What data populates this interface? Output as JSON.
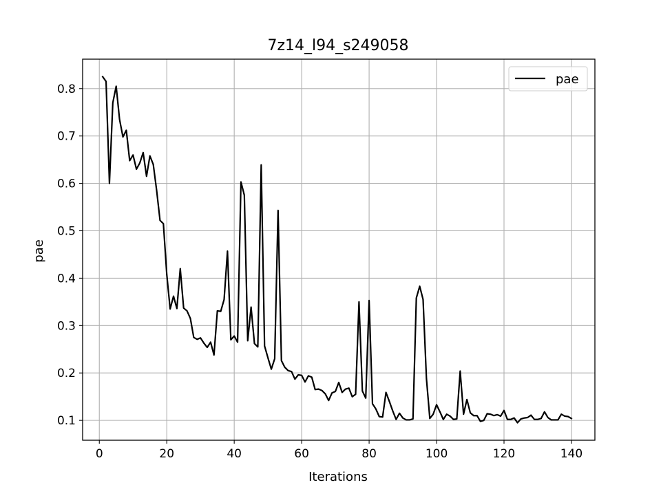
{
  "chart_data": {
    "type": "line",
    "title": "7z14_l94_s249058",
    "xlabel": "Iterations",
    "ylabel": "pae",
    "xlim": [
      -4.95,
      146.95
    ],
    "ylim": [
      0.0581,
      0.8621
    ],
    "xticks": [
      0,
      20,
      40,
      60,
      80,
      100,
      120,
      140
    ],
    "yticks": [
      0.1,
      0.2,
      0.3,
      0.4,
      0.5,
      0.6,
      0.7,
      0.8
    ],
    "grid": true,
    "legend_position": "top-right",
    "series": [
      {
        "name": "pae",
        "color": "#000000",
        "x": [
          1,
          2,
          3,
          4,
          5,
          6,
          7,
          8,
          9,
          10,
          11,
          12,
          13,
          14,
          15,
          16,
          17,
          18,
          19,
          20,
          21,
          22,
          23,
          24,
          25,
          26,
          27,
          28,
          29,
          30,
          31,
          32,
          33,
          34,
          35,
          36,
          37,
          38,
          39,
          40,
          41,
          42,
          43,
          44,
          45,
          46,
          47,
          48,
          49,
          50,
          51,
          52,
          53,
          54,
          55,
          56,
          57,
          58,
          59,
          60,
          61,
          62,
          63,
          64,
          65,
          66,
          67,
          68,
          69,
          70,
          71,
          72,
          73,
          74,
          75,
          76,
          77,
          78,
          79,
          80,
          81,
          82,
          83,
          84,
          85,
          86,
          87,
          88,
          89,
          90,
          91,
          92,
          93,
          94,
          95,
          96,
          97,
          98,
          99,
          100,
          101,
          102,
          103,
          104,
          105,
          106,
          107,
          108,
          109,
          110,
          111,
          112,
          113,
          114,
          115,
          116,
          117,
          118,
          119,
          120,
          121,
          122,
          123,
          124,
          125,
          126,
          127,
          128,
          129,
          130,
          131,
          132,
          133,
          134,
          135,
          136,
          137,
          138,
          139,
          140
        ],
        "y": [
          0.825,
          0.815,
          0.6,
          0.77,
          0.805,
          0.735,
          0.698,
          0.712,
          0.648,
          0.66,
          0.63,
          0.643,
          0.665,
          0.615,
          0.658,
          0.64,
          0.585,
          0.522,
          0.515,
          0.408,
          0.335,
          0.362,
          0.336,
          0.42,
          0.337,
          0.331,
          0.315,
          0.275,
          0.271,
          0.274,
          0.263,
          0.254,
          0.265,
          0.238,
          0.331,
          0.33,
          0.355,
          0.457,
          0.27,
          0.278,
          0.265,
          0.603,
          0.575,
          0.268,
          0.339,
          0.262,
          0.255,
          0.639,
          0.257,
          0.232,
          0.208,
          0.23,
          0.543,
          0.226,
          0.212,
          0.205,
          0.203,
          0.187,
          0.196,
          0.195,
          0.181,
          0.194,
          0.191,
          0.165,
          0.166,
          0.163,
          0.156,
          0.142,
          0.158,
          0.161,
          0.18,
          0.159,
          0.166,
          0.168,
          0.15,
          0.155,
          0.35,
          0.162,
          0.147,
          0.353,
          0.135,
          0.124,
          0.108,
          0.107,
          0.159,
          0.14,
          0.12,
          0.102,
          0.115,
          0.105,
          0.101,
          0.101,
          0.103,
          0.358,
          0.383,
          0.355,
          0.188,
          0.104,
          0.113,
          0.133,
          0.118,
          0.102,
          0.113,
          0.109,
          0.102,
          0.103,
          0.204,
          0.113,
          0.144,
          0.116,
          0.11,
          0.11,
          0.098,
          0.1,
          0.114,
          0.113,
          0.11,
          0.112,
          0.109,
          0.121,
          0.102,
          0.102,
          0.105,
          0.095,
          0.103,
          0.105,
          0.106,
          0.111,
          0.102,
          0.102,
          0.104,
          0.118,
          0.106,
          0.101,
          0.101,
          0.101,
          0.113,
          0.109,
          0.108,
          0.104
        ]
      }
    ]
  }
}
